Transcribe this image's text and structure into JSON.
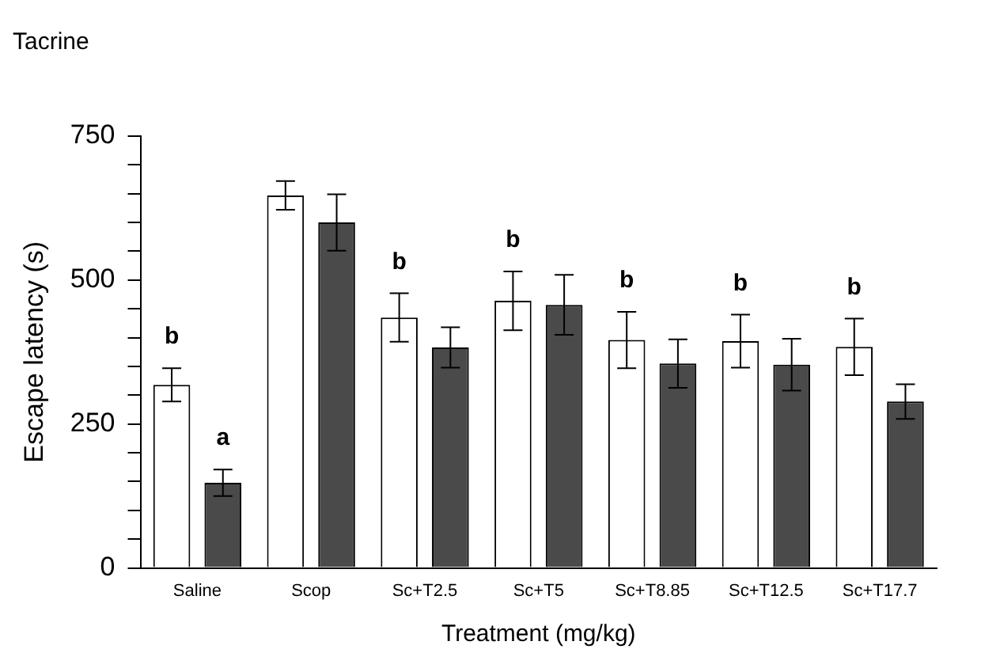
{
  "chart_data": {
    "type": "bar",
    "title": "Tacrine",
    "xlabel": "Treatment (mg/kg)",
    "ylabel": "Escape latency (s)",
    "categories": [
      "Saline",
      "Scop",
      "Sc+T2.5",
      "Sc+T5",
      "Sc+T8.85",
      "Sc+T12.5",
      "Sc+T17.7"
    ],
    "series": [
      {
        "color": "#ffffff",
        "values": [
          318,
          647,
          435,
          464,
          396,
          394,
          384
        ],
        "errors": [
          29,
          25,
          42,
          51,
          49,
          46,
          49
        ],
        "value_labels": [
          "b",
          null,
          "b",
          "b",
          "b",
          "b",
          "b"
        ]
      },
      {
        "color": "#4a4a4a",
        "values": [
          148,
          600,
          383,
          457,
          355,
          353,
          289
        ],
        "errors": [
          23,
          49,
          35,
          52,
          42,
          45,
          30
        ],
        "value_labels": [
          "a",
          null,
          null,
          null,
          null,
          null,
          null
        ]
      }
    ],
    "ylim": [
      0,
      750
    ],
    "yticks": [
      0,
      {
        "value": 50,
        "label": null
      },
      {
        "value": 100,
        "label": null
      },
      {
        "value": 150,
        "label": null
      },
      {
        "value": 200,
        "label": null
      },
      250,
      {
        "value": 300,
        "label": null
      },
      {
        "value": 350,
        "label": null
      },
      {
        "value": 400,
        "label": null
      },
      {
        "value": 450,
        "label": null
      },
      500,
      {
        "value": 550,
        "label": null
      },
      {
        "value": 600,
        "label": null
      },
      {
        "value": 650,
        "label": null
      },
      {
        "value": 700,
        "label": null
      },
      750
    ],
    "grid": false,
    "legend": false
  }
}
